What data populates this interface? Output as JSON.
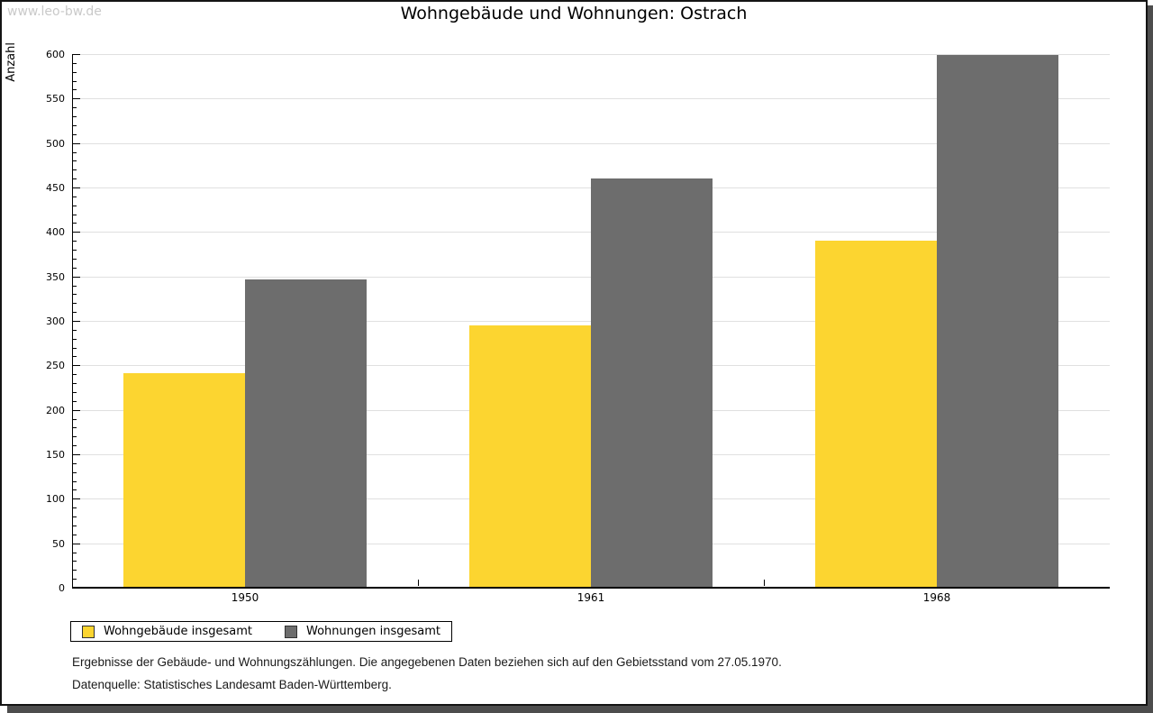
{
  "watermark": "www.leo-bw.de",
  "title": "Wohngebäude und Wohnungen: Ostrach",
  "chart_data": {
    "type": "bar",
    "title": "Wohngebäude und Wohnungen: Ostrach",
    "categories": [
      "1950",
      "1961",
      "1968"
    ],
    "series": [
      {
        "name": "Wohngebäude insgesamt",
        "color": "#fcd530",
        "values": [
          240,
          294,
          389
        ]
      },
      {
        "name": "Wohnungen insgesamt",
        "color": "#6d6d6d",
        "values": [
          346,
          459,
          598
        ]
      }
    ],
    "xlabel": "",
    "ylabel": "Anzahl",
    "ylim": [
      0,
      600
    ],
    "ytick_step": 50,
    "yminor_step": 10,
    "grid": true,
    "legend_position": "bottom-left"
  },
  "footnotes": {
    "line1": "Ergebnisse der Gebäude- und Wohnungszählungen. Die angegebenen Daten beziehen sich auf den Gebietsstand vom 27.05.1970.",
    "line2": "Datenquelle: Statistisches Landesamt Baden-Württemberg."
  },
  "colors": {
    "bar_yellow": "#fcd530",
    "bar_gray": "#6d6d6d",
    "gridline": "#e0e0e0",
    "axis": "#000000",
    "watermark": "#c9c9c9",
    "frame_shadow": "#4d4d4d"
  }
}
